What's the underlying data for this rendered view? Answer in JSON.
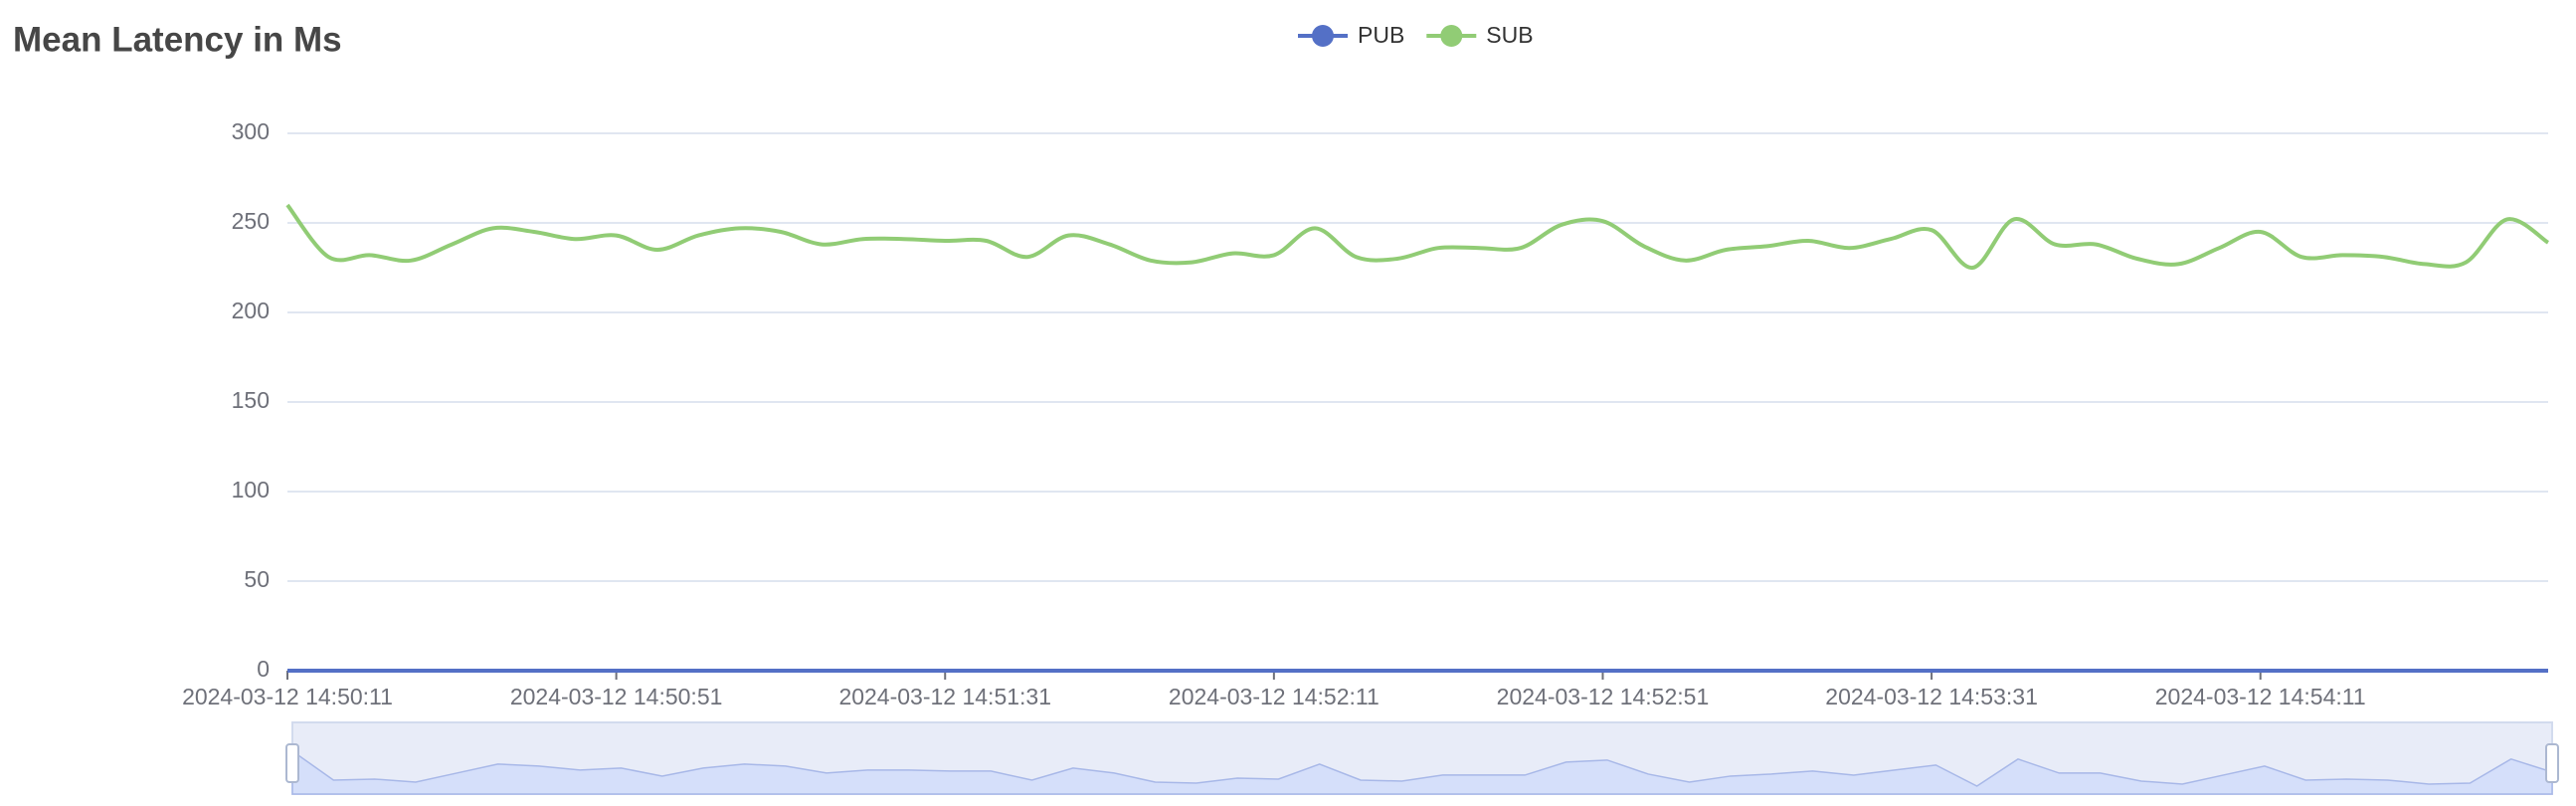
{
  "chart_data": {
    "type": "line",
    "title": "Mean Latency in Ms",
    "categories": [
      "2024-03-12 14:50:11",
      null,
      null,
      null,
      null,
      null,
      null,
      null,
      "2024-03-12 14:50:51",
      null,
      null,
      null,
      null,
      null,
      null,
      null,
      "2024-03-12 14:51:31",
      null,
      null,
      null,
      null,
      null,
      null,
      null,
      "2024-03-12 14:52:11",
      null,
      null,
      null,
      null,
      null,
      null,
      null,
      "2024-03-12 14:52:51",
      null,
      null,
      null,
      null,
      null,
      null,
      null,
      "2024-03-12 14:53:31",
      null,
      null,
      null,
      null,
      null,
      null,
      null,
      "2024-03-12 14:54:11",
      null,
      null,
      null,
      null,
      null,
      null,
      null
    ],
    "series": [
      {
        "name": "PUB",
        "color": "#5470c6",
        "values": [
          0,
          0,
          0,
          0,
          0,
          0,
          0,
          0,
          0,
          0,
          0,
          0,
          0,
          0,
          0,
          0,
          0,
          0,
          0,
          0,
          0,
          0,
          0,
          0,
          0,
          0,
          0,
          0,
          0,
          0,
          0,
          0,
          0,
          0,
          0,
          0,
          0,
          0,
          0,
          0,
          0,
          0,
          0,
          0,
          0,
          0,
          0,
          0,
          0,
          0,
          0,
          0,
          0,
          0,
          0,
          0
        ]
      },
      {
        "name": "SUB",
        "color": "#91cc75",
        "values": [
          260,
          231,
          232,
          229,
          238,
          247,
          245,
          241,
          243,
          235,
          243,
          247,
          245,
          238,
          241,
          241,
          240,
          240,
          231,
          243,
          238,
          229,
          228,
          233,
          232,
          247,
          231,
          230,
          236,
          236,
          236,
          249,
          251,
          237,
          229,
          235,
          237,
          240,
          236,
          241,
          246,
          225,
          252,
          238,
          238,
          230,
          227,
          236,
          245,
          231,
          232,
          231,
          227,
          228,
          252,
          239
        ]
      }
    ],
    "ylim": [
      0,
      300
    ],
    "yticks": [
      0,
      50,
      100,
      150,
      200,
      250,
      300
    ],
    "grid": true,
    "legend": "top"
  }
}
